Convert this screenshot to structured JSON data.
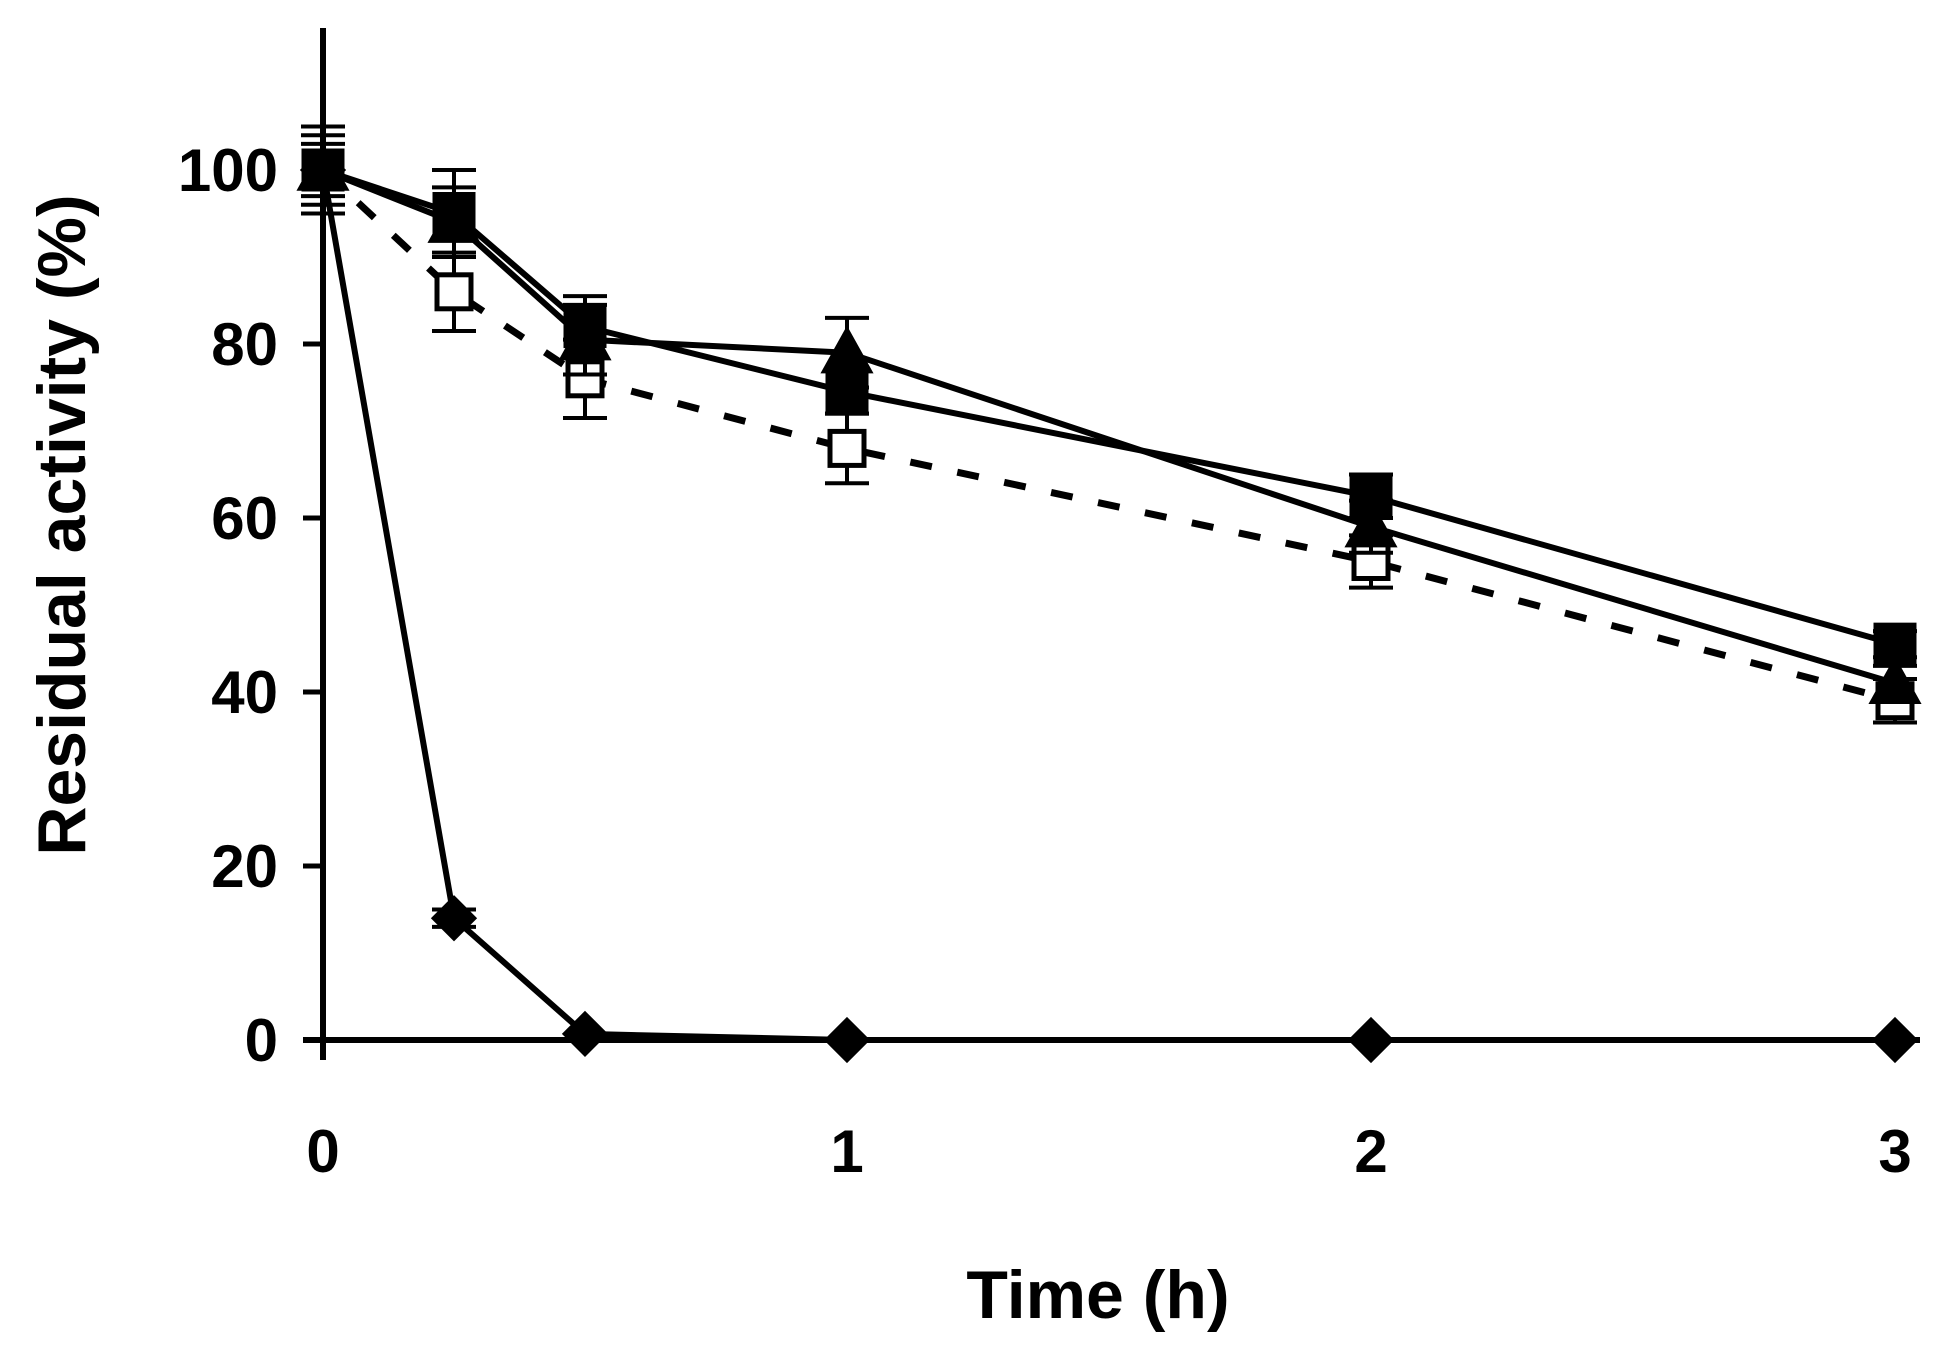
{
  "chart_data": {
    "type": "line",
    "title": "",
    "xlabel": "Time (h)",
    "ylabel": "Residual activity (%)",
    "xlim": [
      0,
      3
    ],
    "ylim": [
      0,
      112
    ],
    "xticks": [
      0,
      1,
      2,
      3
    ],
    "yticks": [
      0,
      20,
      40,
      60,
      80,
      100
    ],
    "grid": false,
    "legend": "none",
    "x": [
      0,
      0.25,
      0.5,
      1,
      2,
      3
    ],
    "series": [
      {
        "name": "filled-diamond",
        "marker": "diamond",
        "filled": true,
        "line": "solid",
        "values": [
          100,
          14,
          0.7,
          0,
          0,
          0
        ],
        "errors": [
          0,
          1,
          0,
          0,
          0,
          0
        ]
      },
      {
        "name": "filled-square",
        "marker": "square",
        "filled": true,
        "line": "solid",
        "values": [
          100,
          95,
          82,
          74.5,
          62.5,
          45.5
        ],
        "errors": [
          3,
          5,
          3.5,
          2.5,
          2.5,
          1.5
        ]
      },
      {
        "name": "filled-triangle",
        "marker": "triangle",
        "filled": true,
        "line": "solid",
        "values": [
          100,
          94,
          80.5,
          79,
          59,
          41
        ],
        "errors": [
          4,
          4,
          4,
          4,
          3,
          2
        ]
      },
      {
        "name": "open-square",
        "marker": "square",
        "filled": false,
        "line": "dashed",
        "values": [
          100,
          86,
          76,
          68,
          55,
          39
        ],
        "errors": [
          5,
          4.5,
          4.5,
          4,
          3,
          2.5
        ]
      }
    ]
  }
}
